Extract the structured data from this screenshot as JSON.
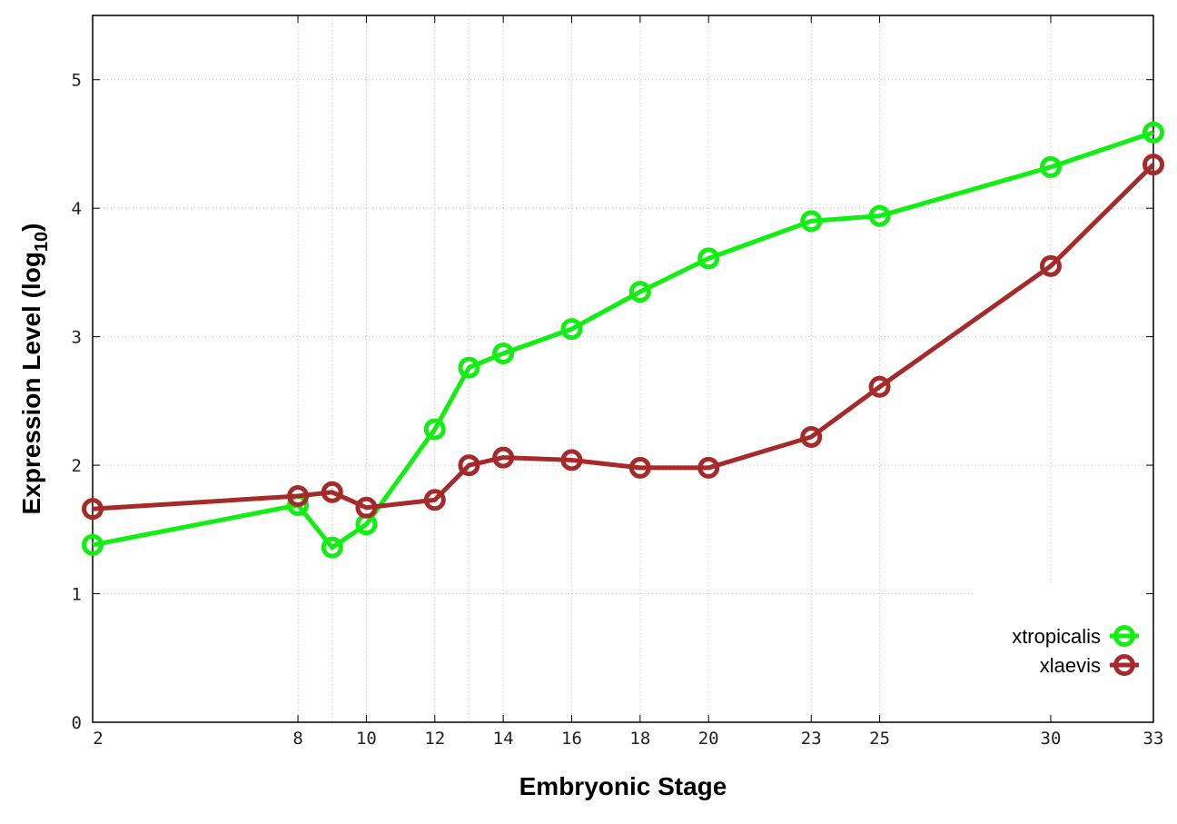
{
  "chart_data": {
    "type": "line",
    "title": "",
    "xlabel": "Embryonic Stage",
    "ylabel": "Expression Level (log",
    "ylabel_subscript": "10",
    "ylabel_close": ")",
    "xlim": [
      2,
      33
    ],
    "ylim": [
      0,
      5.5
    ],
    "x_ticks": [
      2,
      8,
      10,
      12,
      14,
      16,
      18,
      20,
      23,
      25,
      30,
      33
    ],
    "x_ticks_minor_grid": [
      9,
      13
    ],
    "y_ticks": [
      0,
      1,
      2,
      3,
      4,
      5
    ],
    "grid": true,
    "legend_placement": "bottom-right",
    "x": [
      2,
      8,
      9,
      10,
      12,
      13,
      14,
      16,
      18,
      20,
      23,
      25,
      30,
      33
    ],
    "series": [
      {
        "name": "xtropicalis",
        "color": "#11ee11",
        "values": [
          1.38,
          1.69,
          1.36,
          1.54,
          2.28,
          2.76,
          2.87,
          3.06,
          3.35,
          3.61,
          3.9,
          3.94,
          4.32,
          4.59
        ]
      },
      {
        "name": "xlaevis",
        "color": "#a52a2a",
        "values": [
          1.66,
          1.76,
          1.79,
          1.67,
          1.73,
          2.0,
          2.06,
          2.04,
          1.98,
          1.98,
          2.22,
          2.61,
          3.55,
          4.34
        ]
      }
    ]
  }
}
